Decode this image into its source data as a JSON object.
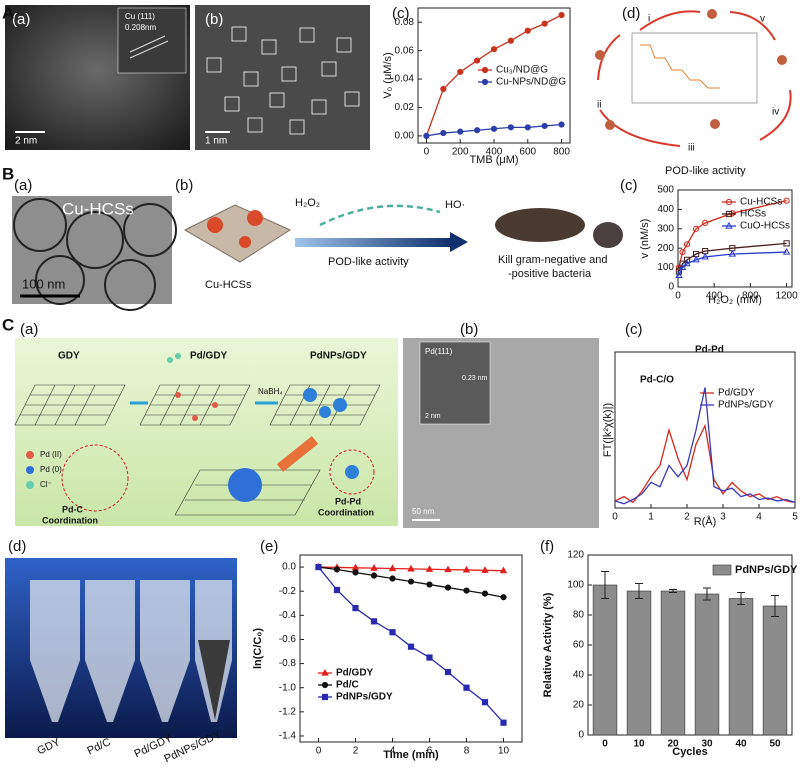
{
  "figure": {
    "A": {
      "label": "A",
      "a": {
        "label": "(a)",
        "annotation": "Cu (111)",
        "spacing": "0.208nm",
        "scale": "2 nm"
      },
      "b": {
        "label": "(b)",
        "scale": "1 nm"
      },
      "c": {
        "label": "(c)"
      },
      "d": {
        "label": "(d)",
        "steps": [
          "i",
          "ii",
          "iii",
          "iv",
          "v"
        ],
        "caption": "POD-like activity"
      }
    },
    "B": {
      "label": "B",
      "a": {
        "label": "(a)",
        "name": "Cu-HCSs",
        "scale": "100 nm"
      },
      "b": {
        "label": "(b)",
        "catalyst": "Cu-HCSs",
        "reactant": "H₂O₂",
        "product": "HO·",
        "process": "POD-like activity",
        "outcome": [
          "Kill gram-negative and",
          "-positive bacteria"
        ]
      },
      "c": {
        "label": "(c)"
      }
    },
    "C": {
      "label": "C",
      "a": {
        "label": "(a)",
        "stages": [
          "GDY",
          "Pd/GDY",
          "PdNPs/GDY"
        ],
        "reagent": "NaBH₄",
        "legend": [
          "Pd (II)",
          "Pd (0)",
          "Cl⁻"
        ],
        "left_note": [
          "Pd-C",
          "Coordination"
        ],
        "right_note": [
          "Pd-Pd",
          "Coordination"
        ]
      },
      "b": {
        "label": "(b)",
        "inset": "Pd(111)",
        "spacing": "0.23 nm",
        "inset_scale": "2 nm",
        "scale": "50 nm"
      },
      "c": {
        "label": "(c)"
      }
    },
    "D": {
      "d": {
        "label": "(d)",
        "samples": [
          "GDY",
          "Pd/C",
          "Pd/GDY",
          "PdNPs/GDY"
        ]
      },
      "e": {
        "label": "(e)"
      },
      "f": {
        "label": "(f)"
      }
    }
  },
  "chart_data": [
    {
      "type": "line",
      "xlabel": "TMB (μM)",
      "ylabel": "V₀ (μM/s)",
      "x": [
        0,
        100,
        200,
        300,
        400,
        500,
        600,
        700,
        800
      ],
      "xlim": [
        -50,
        850
      ],
      "xticks": [
        0,
        200,
        400,
        600,
        800
      ],
      "ylim": [
        -0.005,
        0.09
      ],
      "yticks": [
        {
          "value": 0,
          "label": "0.00"
        },
        {
          "value": 0.02,
          "label": "0.02"
        },
        {
          "value": 0.04,
          "label": "0.04"
        },
        {
          "value": 0.06,
          "label": "0.06"
        },
        {
          "value": 0.08,
          "label": "0.08"
        }
      ],
      "series": [
        {
          "name": "Cu₃/ND@G",
          "color": "#c8321e",
          "marker": "circle",
          "values": [
            0,
            0.033,
            0.045,
            0.053,
            0.061,
            0.067,
            0.074,
            0.079,
            0.085
          ]
        },
        {
          "name": "Cu-NPs/ND@G",
          "color": "#2e3ea8",
          "marker": "circle",
          "values": [
            0,
            0.002,
            0.003,
            0.004,
            0.005,
            0.006,
            0.006,
            0.007,
            0.008
          ]
        }
      ]
    },
    {
      "type": "line",
      "xlabel": "H₂O₂ (mM)",
      "ylabel": "v (nM/s)",
      "x": [
        10,
        50,
        100,
        200,
        300,
        600,
        1200
      ],
      "xlim": [
        0,
        1260
      ],
      "xticks": [
        0,
        400,
        800,
        1200
      ],
      "ylim": [
        0,
        500
      ],
      "yticks": [
        0,
        100,
        200,
        300,
        400,
        500
      ],
      "series": [
        {
          "name": "Cu-HCSs",
          "color": "#d2291c",
          "marker": "circle-open",
          "values": [
            100,
            180,
            220,
            300,
            330,
            380,
            445
          ]
        },
        {
          "name": "HCSs",
          "color": "#4a2020",
          "marker": "square-open",
          "values": [
            80,
            120,
            140,
            170,
            185,
            200,
            225
          ]
        },
        {
          "name": "CuO-HCSs",
          "color": "#2a3ccc",
          "marker": "triangle-open",
          "values": [
            60,
            100,
            120,
            140,
            155,
            170,
            180
          ]
        }
      ]
    },
    {
      "type": "line",
      "xlabel": "R(Å)",
      "ylabel": "FT(|k²χ(k)|)",
      "annotations": [
        "Pd-C/O",
        "Pd-Pd"
      ],
      "x": [
        0,
        0.25,
        0.5,
        0.75,
        1,
        1.25,
        1.5,
        1.75,
        2,
        2.25,
        2.5,
        2.75,
        3,
        3.25,
        3.5,
        3.75,
        4,
        4.25,
        4.5,
        4.75,
        5
      ],
      "xlim": [
        0,
        5
      ],
      "xticks": [
        0,
        1,
        2,
        3,
        4,
        5
      ],
      "ylim": [
        0,
        1.1
      ],
      "series": [
        {
          "name": "Pd/GDY",
          "color": "#d42a1e",
          "marker": "none",
          "values": [
            0.05,
            0.08,
            0.04,
            0.12,
            0.22,
            0.3,
            0.55,
            0.35,
            0.2,
            0.45,
            0.58,
            0.2,
            0.1,
            0.18,
            0.12,
            0.08,
            0.1,
            0.06,
            0.08,
            0.05,
            0.04
          ]
        },
        {
          "name": "PdNPs/GDY",
          "color": "#3a3ab8",
          "marker": "none",
          "values": [
            0.05,
            0.03,
            0.06,
            0.1,
            0.18,
            0.15,
            0.3,
            0.22,
            0.3,
            0.55,
            0.85,
            0.15,
            0.12,
            0.14,
            0.08,
            0.1,
            0.06,
            0.07,
            0.05,
            0.06,
            0.04
          ]
        }
      ]
    },
    {
      "type": "line",
      "xlabel": "Time (min)",
      "ylabel": "ln(C/C₀)",
      "x": [
        0,
        1,
        2,
        3,
        4,
        5,
        6,
        7,
        8,
        9,
        10
      ],
      "xlim": [
        -1,
        11
      ],
      "xticks": [
        0,
        2,
        4,
        6,
        8,
        10
      ],
      "ylim": [
        -1.45,
        0.1
      ],
      "yticks": [
        {
          "value": 0,
          "label": "0.0"
        },
        -0.2,
        -0.4,
        -0.6,
        -0.8,
        {
          "value": -1,
          "label": "-1.0"
        },
        -1.2,
        -1.4
      ],
      "series": [
        {
          "name": "Pd/GDY",
          "color": "#e0201c",
          "marker": "triangle",
          "values": [
            0,
            -0.003,
            -0.006,
            -0.009,
            -0.012,
            -0.015,
            -0.018,
            -0.021,
            -0.024,
            -0.027,
            -0.03
          ]
        },
        {
          "name": "Pd/C",
          "color": "#111111",
          "marker": "circle",
          "values": [
            0,
            -0.02,
            -0.045,
            -0.07,
            -0.095,
            -0.12,
            -0.145,
            -0.17,
            -0.195,
            -0.22,
            -0.25
          ]
        },
        {
          "name": "PdNPs/GDY",
          "color": "#2a2ab0",
          "marker": "square",
          "values": [
            0,
            -0.19,
            -0.34,
            -0.45,
            -0.54,
            -0.66,
            -0.75,
            -0.87,
            -1,
            -1.12,
            -1.29
          ]
        }
      ]
    },
    {
      "type": "bar",
      "xlabel": "Cycles",
      "ylabel": "Relative Activity (%)",
      "categories": [
        "0",
        "10",
        "20",
        "30",
        "40",
        "50"
      ],
      "series": [
        {
          "name": "PdNPs/GDY",
          "color": "#8c8c8c",
          "values": [
            100,
            96,
            96,
            94,
            91,
            86
          ],
          "errors": [
            9,
            5,
            1,
            4,
            4,
            7
          ]
        }
      ],
      "ylim": [
        0,
        120
      ],
      "yticks": [
        0,
        20,
        40,
        60,
        80,
        100,
        120
      ]
    }
  ]
}
